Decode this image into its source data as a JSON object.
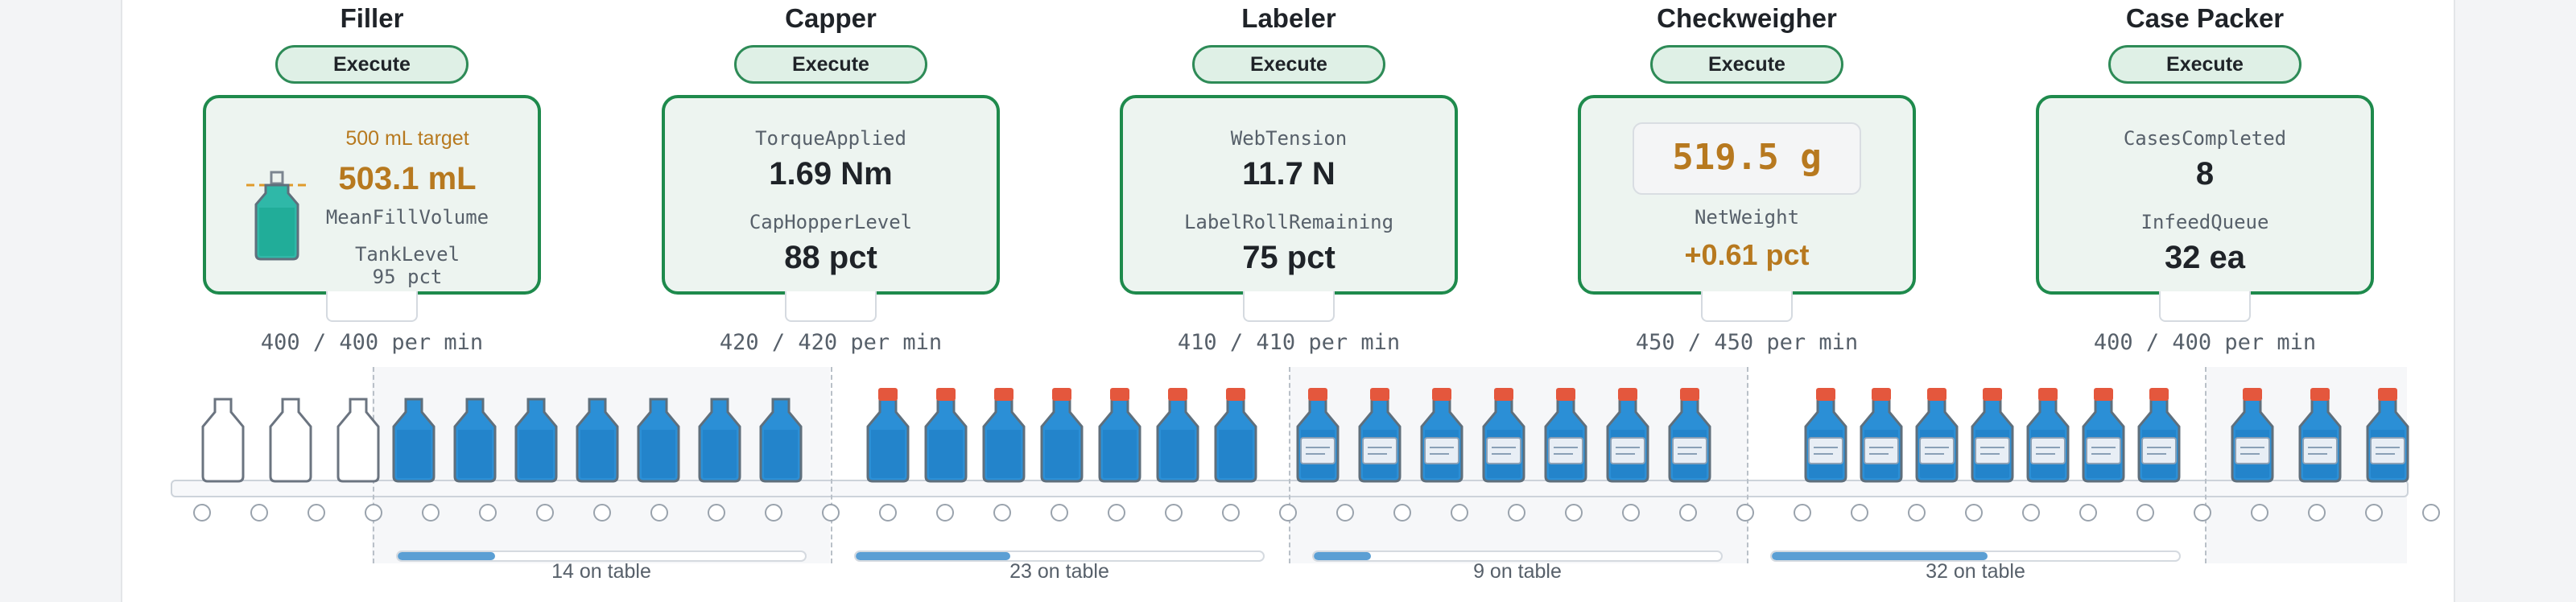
{
  "stations": [
    {
      "name": "Filler",
      "execute_label": "Execute",
      "target": "500 mL target",
      "value": "503.1 mL",
      "label": "MeanFillVolume",
      "tank_label": "TankLevel",
      "tank_value": "95 pct",
      "rate": "400 / 400 per min"
    },
    {
      "name": "Capper",
      "execute_label": "Execute",
      "m1_label": "TorqueApplied",
      "m1_value": "1.69 Nm",
      "m2_label": "CapHopperLevel",
      "m2_value": "88 pct",
      "rate": "420 / 420 per min"
    },
    {
      "name": "Labeler",
      "execute_label": "Execute",
      "m1_label": "WebTension",
      "m1_value": "11.7 N",
      "m2_label": "LabelRollRemaining",
      "m2_value": "75 pct",
      "rate": "410 / 410 per min"
    },
    {
      "name": "Checkweigher",
      "execute_label": "Execute",
      "display": "519.5 g",
      "label": "NetWeight",
      "delta": "+0.61 pct",
      "rate": "450 / 450 per min"
    },
    {
      "name": "Case Packer",
      "execute_label": "Execute",
      "m1_label": "CasesCompleted",
      "m1_value": "8",
      "m2_label": "InfeedQueue",
      "m2_value": "32 ea",
      "rate": "400 / 400 per min"
    }
  ],
  "queues": [
    {
      "label": "14 on table",
      "fill": 0.24
    },
    {
      "label": "23 on table",
      "fill": 0.38
    },
    {
      "label": "9 on table",
      "fill": 0.14
    },
    {
      "label": "32 on table",
      "fill": 0.53
    }
  ],
  "colors": {
    "accent_green": "#1e8a4c",
    "amber": "#b7791f",
    "bottle_blue": "#2b8fd6",
    "cap_red": "#e4573d",
    "fill_teal": "#1fb39a"
  }
}
